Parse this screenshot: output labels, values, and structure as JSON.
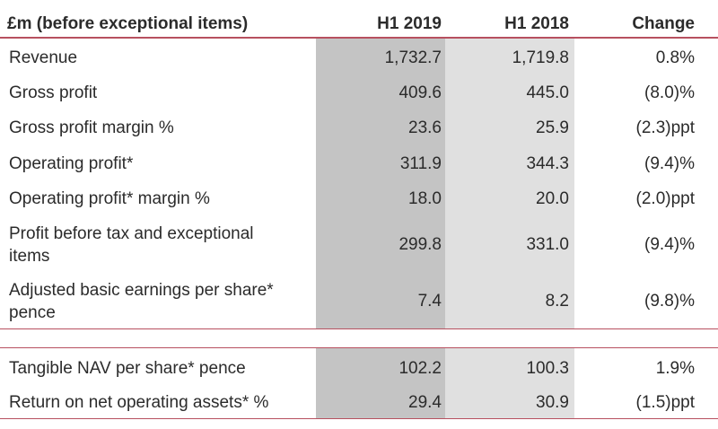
{
  "header": {
    "label": "£m (before exceptional items)",
    "col_2019": "H1 2019",
    "col_2018": "H1 2018",
    "col_change": "Change"
  },
  "rows": [
    {
      "label": "Revenue",
      "h1_2019": "1,732.7",
      "h1_2018": "1,719.8",
      "change": "0.8%"
    },
    {
      "label": "Gross profit",
      "h1_2019": "409.6",
      "h1_2018": "445.0",
      "change": "(8.0)%"
    },
    {
      "label": "Gross profit margin %",
      "h1_2019": "23.6",
      "h1_2018": "25.9",
      "change": "(2.3)ppt"
    },
    {
      "label": "Operating profit*",
      "h1_2019": "311.9",
      "h1_2018": "344.3",
      "change": "(9.4)%"
    },
    {
      "label": "Operating profit* margin %",
      "h1_2019": "18.0",
      "h1_2018": "20.0",
      "change": "(2.0)ppt"
    },
    {
      "label_line1": "Profit before tax and exceptional",
      "label_line2": "items",
      "h1_2019": "299.8",
      "h1_2018": "331.0",
      "change": "(9.4)%"
    },
    {
      "label_line1": "Adjusted basic earnings per share*",
      "label_line2": "pence",
      "h1_2019": "7.4",
      "h1_2018": "8.2",
      "change": "(9.8)%"
    }
  ],
  "rows2": [
    {
      "label": "Tangible NAV per share* pence",
      "h1_2019": "102.2",
      "h1_2018": "100.3",
      "change": "1.9%"
    },
    {
      "label": "Return on net operating assets* %",
      "h1_2019": "29.4",
      "h1_2018": "30.9",
      "change": "(1.5)ppt"
    }
  ]
}
